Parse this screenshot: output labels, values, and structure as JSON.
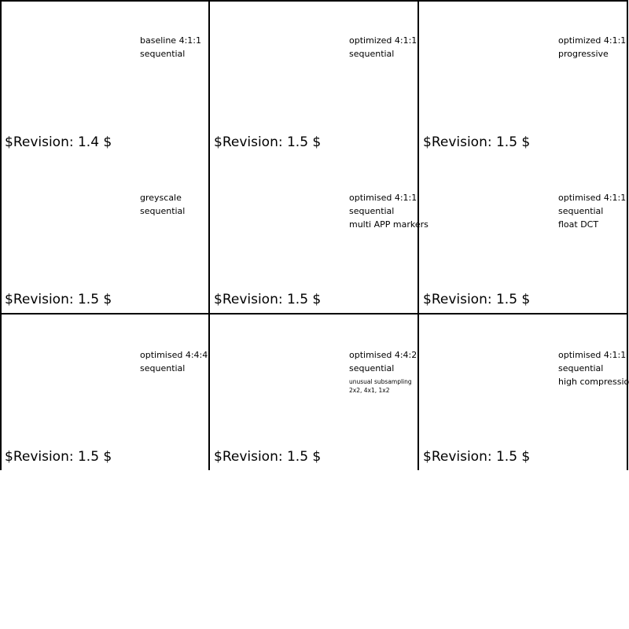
{
  "cells": [
    {
      "lines": [
        "baseline 4:1:1",
        "sequential"
      ],
      "small": [],
      "revision": "$Revision: 1.4 $"
    },
    {
      "lines": [
        "optimized 4:1:1",
        "sequential"
      ],
      "small": [],
      "revision": "$Revision: 1.5 $"
    },
    {
      "lines": [
        "optimized 4:1:1",
        "progressive"
      ],
      "small": [],
      "revision": "$Revision: 1.5 $"
    },
    {
      "lines": [
        "greyscale",
        "sequential"
      ],
      "small": [],
      "revision": "$Revision: 1.5 $"
    },
    {
      "lines": [
        "optimised 4:1:1",
        "sequential",
        "multi APP markers"
      ],
      "small": [],
      "revision": "$Revision: 1.5 $"
    },
    {
      "lines": [
        "optimised 4:1:1",
        "sequential",
        "float DCT"
      ],
      "small": [],
      "revision": "$Revision: 1.5 $"
    },
    {
      "lines": [
        "optimised 4:4:4",
        "sequential"
      ],
      "small": [],
      "revision": "$Revision: 1.5 $"
    },
    {
      "lines": [
        "optimised 4:4:2",
        "sequential"
      ],
      "small": [
        "unusual subsampling",
        "2x2, 4x1, 1x2"
      ],
      "revision": "$Revision: 1.5 $"
    },
    {
      "lines": [
        "optimised 4:1:1",
        "sequential",
        "high compression"
      ],
      "small": [],
      "revision": "$Revision: 1.5 $"
    }
  ]
}
